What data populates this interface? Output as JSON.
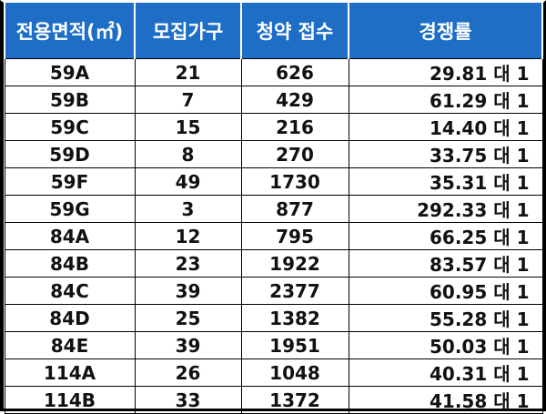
{
  "headers": [
    "전용면적(㎡)",
    "모집가구",
    "청약 접수",
    "경쟁률"
  ],
  "rows": [
    {
      "type": "59A",
      "units": "21",
      "applications": "626",
      "rate": "29.81 대 1"
    },
    {
      "type": "59B",
      "units": "7",
      "applications": "429",
      "rate": "61.29 대 1"
    },
    {
      "type": "59C",
      "units": "15",
      "applications": "216",
      "rate": "14.40 대 1"
    },
    {
      "type": "59D",
      "units": "8",
      "applications": "270",
      "rate": "33.75 대 1"
    },
    {
      "type": "59F",
      "units": "49",
      "applications": "1730",
      "rate": "35.31 대 1"
    },
    {
      "type": "59G",
      "units": "3",
      "applications": "877",
      "rate": "292.33 대 1"
    },
    {
      "type": "84A",
      "units": "12",
      "applications": "795",
      "rate": "66.25 대 1"
    },
    {
      "type": "84B",
      "units": "23",
      "applications": "1922",
      "rate": "83.57 대 1"
    },
    {
      "type": "84C",
      "units": "39",
      "applications": "2377",
      "rate": "60.95 대 1"
    },
    {
      "type": "84D",
      "units": "25",
      "applications": "1382",
      "rate": "55.28 대 1"
    },
    {
      "type": "84E",
      "units": "39",
      "applications": "1951",
      "rate": "50.03 대 1"
    },
    {
      "type": "114A",
      "units": "26",
      "applications": "1048",
      "rate": "40.31 대 1"
    },
    {
      "type": "114B",
      "units": "33",
      "applications": "1372",
      "rate": "41.58 대 1"
    }
  ],
  "colors": {
    "header_bg": "#1f6ec6",
    "header_text": "#ffffff"
  }
}
